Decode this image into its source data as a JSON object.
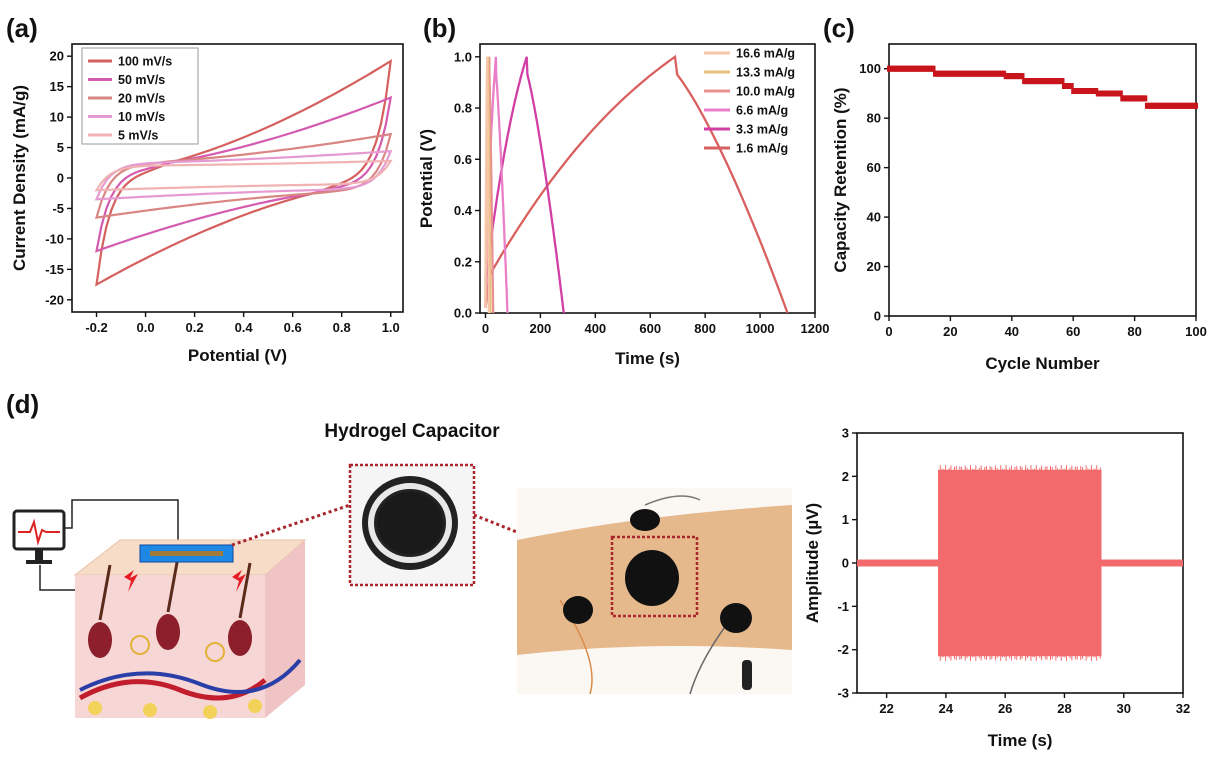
{
  "panel_labels": {
    "a": "(a)",
    "b": "(b)",
    "c": "(c)",
    "d": "(d)"
  },
  "illustration": {
    "title": "Hydrogel Capacitor"
  },
  "colors": {
    "100": "#d4605f",
    "50": "#d45cb0",
    "20": "#d98683",
    "10": "#e59ad2",
    "5": "#f0b2b2",
    "b16_6": "#f6c7a9",
    "b13_3": "#e8c07a",
    "b10_0": "#e79192",
    "b6_6": "#ea7fc8",
    "b3_3": "#d13fa5",
    "b1_6": "#d8605f",
    "c_marker": "#c8151b",
    "d_signal": "#f36a6c"
  },
  "chart_data": [
    {
      "id": "a",
      "type": "line",
      "xlabel": "Potential (V)",
      "ylabel": "Current Density (mA/g)",
      "xlim": [
        -0.3,
        1.05
      ],
      "ylim": [
        -22,
        22
      ],
      "xticks": [
        -0.2,
        0.0,
        0.2,
        0.4,
        0.6,
        0.8,
        1.0
      ],
      "xtick_labels": [
        "-0.2",
        "0.0",
        "0.2",
        "0.4",
        "0.6",
        "0.8",
        "1.0"
      ],
      "yticks": [
        -20,
        -15,
        -10,
        -5,
        0,
        5,
        10,
        15,
        20
      ],
      "legend_position": "top-left",
      "series": [
        {
          "name": "100 mV/s",
          "color_key": "100",
          "vertex_low": [
            -0.2,
            -17.5
          ],
          "vertex_high": [
            1.0,
            19.2
          ],
          "upper_start": 0.5,
          "lower_end": -0.5
        },
        {
          "name": "50 mV/s",
          "color_key": "50",
          "vertex_low": [
            -0.2,
            -12.0
          ],
          "vertex_high": [
            1.0,
            13.2
          ],
          "upper_start": 1.2,
          "lower_end": -1.2
        },
        {
          "name": "20 mV/s",
          "color_key": "20",
          "vertex_low": [
            -0.2,
            -6.5
          ],
          "vertex_high": [
            1.0,
            7.2
          ],
          "upper_start": 2.2,
          "lower_end": -2.0
        },
        {
          "name": "10 mV/s",
          "color_key": "10",
          "vertex_low": [
            -0.2,
            -3.5
          ],
          "vertex_high": [
            1.0,
            4.4
          ],
          "upper_start": 2.4,
          "lower_end": -1.8
        },
        {
          "name": "5 mV/s",
          "color_key": "5",
          "vertex_low": [
            -0.2,
            -2.0
          ],
          "vertex_high": [
            1.0,
            2.8
          ],
          "upper_start": 2.0,
          "lower_end": -1.0
        }
      ]
    },
    {
      "id": "b",
      "type": "line",
      "xlabel": "Time (s)",
      "ylabel": "Potential (V)",
      "xlim": [
        -20,
        1200
      ],
      "ylim": [
        0,
        1.05
      ],
      "xticks": [
        0,
        200,
        400,
        600,
        800,
        1000,
        1200
      ],
      "yticks": [
        0.0,
        0.2,
        0.4,
        0.6,
        0.8,
        1.0
      ],
      "ytick_labels": [
        "0.0",
        "0.2",
        "0.4",
        "0.6",
        "0.8",
        "1.0"
      ],
      "legend_position": "top-right",
      "series": [
        {
          "name": "16.6 mA/g",
          "color_key": "b16_6",
          "t_charge": 6,
          "t_end": 12
        },
        {
          "name": "13.3 mA/g",
          "color_key": "b13_3",
          "t_charge": 9,
          "t_end": 18
        },
        {
          "name": "10.0 mA/g",
          "color_key": "b10_0",
          "t_charge": 14,
          "t_end": 28
        },
        {
          "name": "6.6 mA/g",
          "color_key": "b6_6",
          "t_charge": 38,
          "t_end": 80
        },
        {
          "name": "3.3 mA/g",
          "color_key": "b3_3",
          "t_charge": 150,
          "t_end": 285
        },
        {
          "name": "1.6 mA/g",
          "color_key": "b1_6",
          "t_charge": 690,
          "t_end": 1100
        }
      ]
    },
    {
      "id": "c",
      "type": "scatter",
      "xlabel": "Cycle Number",
      "ylabel": "Capacity Retention (%)",
      "xlim": [
        0,
        100
      ],
      "ylim": [
        0,
        110
      ],
      "xticks": [
        0,
        20,
        40,
        60,
        80,
        100
      ],
      "yticks": [
        0,
        20,
        40,
        60,
        80,
        100
      ],
      "color_key": "c_marker",
      "steps": [
        {
          "from": 0,
          "to": 15,
          "value": 100
        },
        {
          "from": 15,
          "to": 38,
          "value": 98
        },
        {
          "from": 38,
          "to": 44,
          "value": 97
        },
        {
          "from": 44,
          "to": 57,
          "value": 95
        },
        {
          "from": 57,
          "to": 60,
          "value": 93
        },
        {
          "from": 60,
          "to": 68,
          "value": 91
        },
        {
          "from": 68,
          "to": 76,
          "value": 90
        },
        {
          "from": 76,
          "to": 84,
          "value": 88
        },
        {
          "from": 84,
          "to": 100,
          "value": 85
        }
      ]
    },
    {
      "id": "d",
      "type": "area",
      "xlabel": "Time (s)",
      "ylabel": "Amplitude (µV)",
      "xlim": [
        21,
        32
      ],
      "ylim": [
        -3,
        3
      ],
      "xticks": [
        22,
        24,
        26,
        28,
        30,
        32
      ],
      "yticks": [
        -3,
        -2,
        -1,
        0,
        1,
        2,
        3
      ],
      "color_key": "d_signal",
      "baseline_amplitude": 0.08,
      "burst": {
        "start": 23.75,
        "end": 29.25,
        "amplitude": 2.15
      }
    }
  ]
}
